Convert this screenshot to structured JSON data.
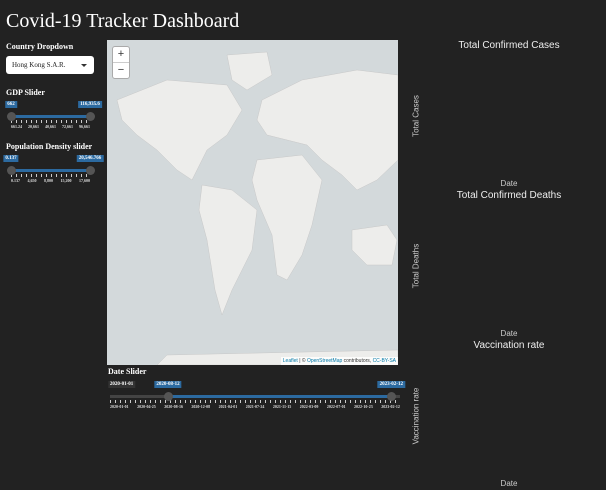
{
  "header": {
    "title": "Covid-19 Tracker Dashboard"
  },
  "controls": {
    "country": {
      "label": "Country Dropdown",
      "selected": "Hong Kong S.A.R."
    },
    "gdp": {
      "label": "GDP Slider",
      "handles": [
        "662",
        "116,935.6"
      ],
      "ticks": [
        "661.24",
        "20,661",
        "40,661",
        "72,661",
        "96,661"
      ]
    },
    "density": {
      "label": "Population Density slider",
      "handles": [
        "0.137",
        "20,546.766"
      ],
      "ticks": [
        "0.137",
        "4,650",
        "8,800",
        "15,200",
        "17,600"
      ]
    }
  },
  "map": {
    "zoom_in": "+",
    "zoom_out": "−",
    "attribution": [
      "Leaflet",
      "| ©",
      "OpenStreetMap",
      "contributors,",
      "CC-BY-SA"
    ]
  },
  "date_slider": {
    "label": "Date Slider",
    "min_label": "2020-01-01",
    "handles": [
      "2020-08-12",
      "2023-02-12"
    ],
    "ticks": [
      "2020-01-01",
      "2020-04-25",
      "2020-08-16",
      "2020-12-08",
      "2021-04-01",
      "2021-07-24",
      "2021-11-15",
      "2022-03-09",
      "2022-07-01",
      "2022-10-23",
      "2023-02-12"
    ]
  },
  "charts": [
    {
      "title": "Total Confirmed Cases",
      "y_label": "Total Cases",
      "x_label": "Date"
    },
    {
      "title": "Total Confirmed Deaths",
      "y_label": "Total Deaths",
      "x_label": "Date"
    },
    {
      "title": "Vaccination rate",
      "y_label": "Vaccination rate",
      "x_label": "Date"
    }
  ]
}
